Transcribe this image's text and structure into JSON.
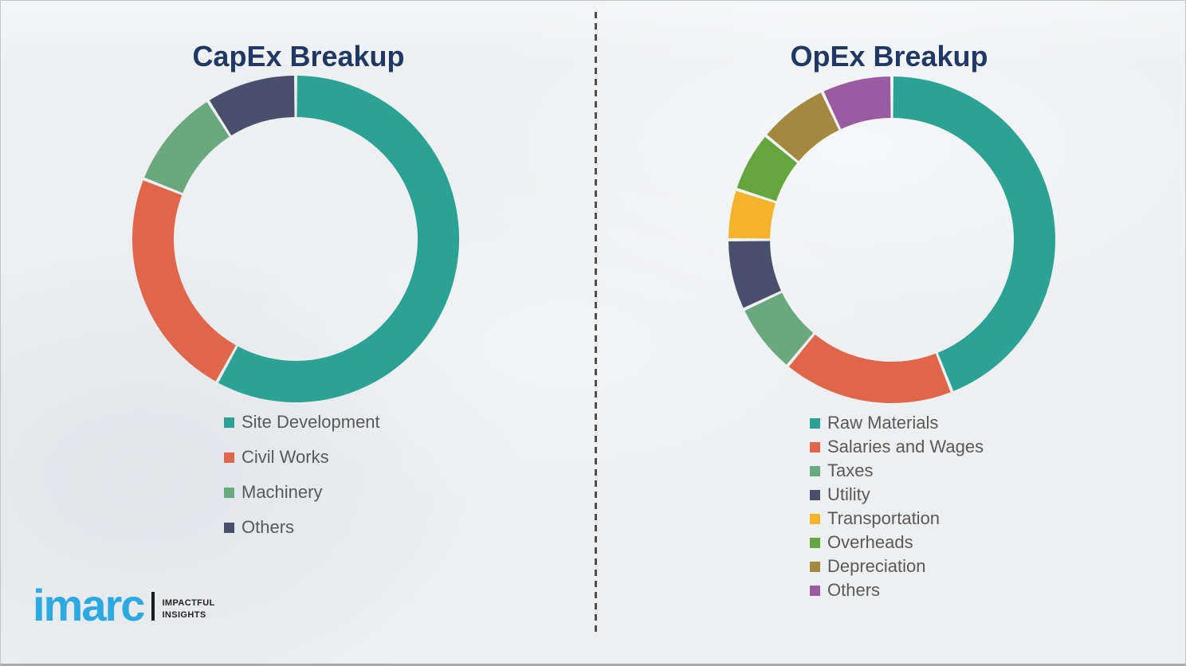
{
  "page": {
    "background_hex": "#edeff1",
    "divider_style": "vertical-dashed-line",
    "divider_color_hex": "#4f4f4f",
    "title_color_hex": "#1f3864",
    "legend_text_color_hex": "#595959"
  },
  "capex_panel": {
    "title": "CapEx Breakup"
  },
  "opex_panel": {
    "title": "OpEx Breakup"
  },
  "chart_data": [
    {
      "type": "pie",
      "variant": "donut",
      "title": "CapEx Breakup",
      "labels": [
        "Site Development",
        "Civil Works",
        "Machinery",
        "Others"
      ],
      "values": [
        58,
        23,
        10,
        9
      ],
      "unit": "percent",
      "colors": [
        "#2BA294",
        "#E0664B",
        "#6AA97E",
        "#49506C"
      ],
      "start_angle_deg": 0,
      "direction": "clockwise",
      "legend_position": "below-left"
    },
    {
      "type": "pie",
      "variant": "donut",
      "title": "OpEx Breakup",
      "labels": [
        "Raw Materials",
        "Salaries and Wages",
        "Taxes",
        "Utility",
        "Transportation",
        "Overheads",
        "Depreciation",
        "Others"
      ],
      "values": [
        44,
        17,
        7,
        7,
        5,
        6,
        7,
        7
      ],
      "unit": "percent",
      "colors": [
        "#2BA294",
        "#E0664B",
        "#6AA97E",
        "#49506C",
        "#F3B32B",
        "#63A63E",
        "#A4883F",
        "#9A5CA0"
      ],
      "start_angle_deg": 0,
      "direction": "clockwise",
      "legend_position": "below-left"
    }
  ],
  "logo": {
    "brand": "imarc",
    "tagline_line1": "IMPACTFUL",
    "tagline_line2": "INSIGHTS",
    "brand_color_hex": "#2CA9E1"
  }
}
